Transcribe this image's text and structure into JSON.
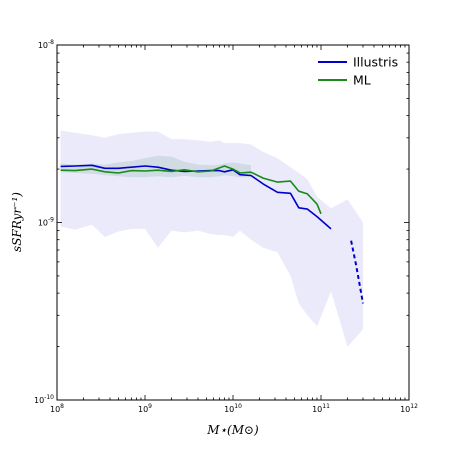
{
  "chart_data": {
    "type": "line",
    "xlabel": "M⋆(M⊙)",
    "ylabel": "sSFRyr⁻¹)",
    "xscale": "log",
    "yscale": "log",
    "xlim": [
      100000000.0,
      1000000000000.0
    ],
    "ylim": [
      1e-10,
      1e-08
    ],
    "x_ticks": [
      {
        "value": 100000000.0,
        "base": "10",
        "exp": "8"
      },
      {
        "value": 1000000000.0,
        "base": "10",
        "exp": "9"
      },
      {
        "value": 10000000000.0,
        "base": "10",
        "exp": "10"
      },
      {
        "value": 100000000000.0,
        "base": "10",
        "exp": "11"
      },
      {
        "value": 1000000000000.0,
        "base": "10",
        "exp": "12"
      }
    ],
    "y_ticks": [
      {
        "value": 1e-10,
        "base": "10",
        "exp": "-10"
      },
      {
        "value": 1e-09,
        "base": "10",
        "exp": "-9"
      },
      {
        "value": 1e-08,
        "base": "10",
        "exp": "-8"
      }
    ],
    "legend_position": "top-right",
    "grid": false,
    "series": [
      {
        "name": "Illustris",
        "color": "#0000cc",
        "x": [
          110000000.0,
          160000000.0,
          250000000.0,
          350000000.0,
          500000000.0,
          700000000.0,
          1000000000.0,
          1400000000.0,
          2000000000.0,
          2800000000.0,
          4000000000.0,
          5600000000.0,
          7000000000.0,
          8000000000.0,
          10000000000.0,
          12000000000.0,
          16000000000.0,
          22000000000.0,
          32000000000.0,
          45000000000.0,
          56000000000.0,
          70000000000.0,
          90000000000.0,
          130000000000.0
        ],
        "y": [
          2.07e-09,
          2.08e-09,
          2.1e-09,
          2.02e-09,
          2.02e-09,
          2.05e-09,
          2.08e-09,
          2.05e-09,
          1.97e-09,
          1.94e-09,
          1.95e-09,
          1.96e-09,
          1.96e-09,
          1.93e-09,
          1.98e-09,
          1.86e-09,
          1.84e-09,
          1.65e-09,
          1.48e-09,
          1.46e-09,
          1.21e-09,
          1.19e-09,
          1.08e-09,
          9.2e-10
        ]
      },
      {
        "name": "ML",
        "color": "#1a8a1a",
        "x": [
          110000000.0,
          160000000.0,
          250000000.0,
          350000000.0,
          500000000.0,
          700000000.0,
          1000000000.0,
          1400000000.0,
          2000000000.0,
          2800000000.0,
          4000000000.0,
          5600000000.0,
          7000000000.0,
          8000000000.0,
          10000000000.0,
          12000000000.0,
          16000000000.0,
          22000000000.0,
          32000000000.0,
          45000000000.0,
          56000000000.0,
          70000000000.0,
          90000000000.0,
          100000000000.0
        ],
        "y": [
          1.97e-09,
          1.96e-09,
          2e-09,
          1.93e-09,
          1.9e-09,
          1.96e-09,
          1.95e-09,
          1.97e-09,
          1.94e-09,
          1.98e-09,
          1.93e-09,
          1.95e-09,
          2.03e-09,
          2.08e-09,
          2e-09,
          1.9e-09,
          1.92e-09,
          1.78e-09,
          1.69e-09,
          1.71e-09,
          1.5e-09,
          1.45e-09,
          1.27e-09,
          1.12e-09
        ]
      }
    ],
    "extra_line": {
      "style": "dashed",
      "color": "#0000cc",
      "x": [
        220000000000.0,
        250000000000.0,
        300000000000.0
      ],
      "y": [
        7.9e-10,
        5.8e-10,
        3.5e-10
      ]
    },
    "bands": [
      {
        "color": "#e6e6fa",
        "x": [
          110000000.0,
          160000000.0,
          250000000.0,
          350000000.0,
          500000000.0,
          700000000.0,
          1000000000.0,
          1400000000.0,
          2000000000.0,
          2800000000.0,
          4000000000.0,
          5600000000.0,
          7000000000.0,
          8000000000.0,
          10000000000.0,
          12000000000.0,
          16000000000.0,
          22000000000.0,
          32000000000.0,
          45000000000.0,
          56000000000.0,
          70000000000.0,
          90000000000.0,
          130000000000.0,
          200000000000.0,
          300000000000.0
        ],
        "upper": [
          3.3e-09,
          3.2e-09,
          3.1e-09,
          3e-09,
          3.15e-09,
          3.2e-09,
          3.25e-09,
          3.25e-09,
          2.95e-09,
          2.95e-09,
          2.9e-09,
          2.85e-09,
          2.9e-09,
          2.8e-09,
          2.8e-09,
          2.8e-09,
          2.75e-09,
          2.5e-09,
          2.3e-09,
          2.05e-09,
          1.9e-09,
          1.75e-09,
          1.4e-09,
          1.2e-09,
          1.35e-09,
          1e-09
        ],
        "lower": [
          9.5e-10,
          9.1e-10,
          9.7e-10,
          8.3e-10,
          8.9e-10,
          9.2e-10,
          9.2e-10,
          7.2e-10,
          9e-10,
          8.8e-10,
          9e-10,
          8.6e-10,
          8.5e-10,
          8.5e-10,
          8.3e-10,
          9e-10,
          8e-10,
          7.2e-10,
          6.8e-10,
          5e-10,
          3.5e-10,
          3e-10,
          2.6e-10,
          4.1e-10,
          2e-10,
          2.5e-10
        ]
      },
      {
        "color": "#c8d6dc",
        "x": [
          110000000.0,
          160000000.0,
          250000000.0,
          350000000.0,
          500000000.0,
          700000000.0,
          1000000000.0,
          1400000000.0,
          2000000000.0,
          2800000000.0,
          4000000000.0,
          5600000000.0,
          7000000000.0,
          8000000000.0,
          10000000000.0,
          12000000000.0,
          16000000000.0
        ],
        "upper": [
          2.15e-09,
          2.12e-09,
          2.15e-09,
          2.12e-09,
          2.18e-09,
          2.22e-09,
          2.3e-09,
          2.38e-09,
          2.35e-09,
          2.2e-09,
          2.12e-09,
          2.1e-09,
          2.12e-09,
          2.15e-09,
          2.18e-09,
          2.15e-09,
          2.1e-09
        ],
        "lower": [
          1.92e-09,
          1.9e-09,
          1.88e-09,
          1.85e-09,
          1.82e-09,
          1.8e-09,
          1.8e-09,
          1.82e-09,
          1.8e-09,
          1.83e-09,
          1.8e-09,
          1.8e-09,
          1.82e-09,
          1.85e-09,
          1.82e-09,
          1.8e-09,
          1.8e-09
        ]
      }
    ]
  }
}
